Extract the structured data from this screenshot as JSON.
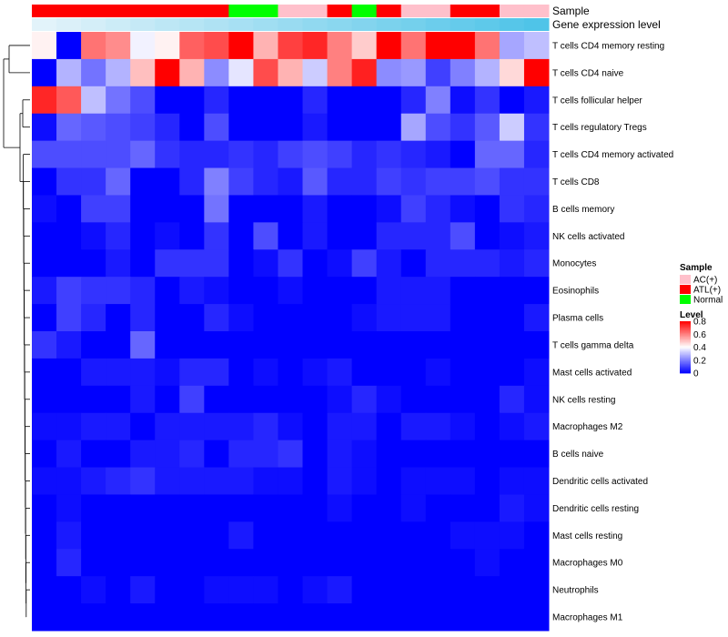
{
  "chart_data": {
    "type": "heatmap",
    "annotation_labels": [
      "Sample",
      "Gene expression level"
    ],
    "sample_track": [
      "ATL(+)",
      "ATL(+)",
      "ATL(+)",
      "ATL(+)",
      "ATL(+)",
      "ATL(+)",
      "ATL(+)",
      "ATL(+)",
      "Normal",
      "Normal",
      "AC(+)",
      "AC(+)",
      "ATL(+)",
      "Normal",
      "ATL(+)",
      "AC(+)",
      "AC(+)",
      "ATL(+)",
      "ATL(+)",
      "AC(+)",
      "AC(+)"
    ],
    "expression_track": [
      0.02,
      0.06,
      0.1,
      0.14,
      0.18,
      0.22,
      0.26,
      0.3,
      0.34,
      0.38,
      0.42,
      0.46,
      0.5,
      0.54,
      0.58,
      0.62,
      0.66,
      0.7,
      0.74,
      0.78,
      0.82
    ],
    "rows": [
      "T cells CD4 memory resting",
      "T cells CD4 naive",
      "T cells follicular helper",
      "T cells regulatory  Tregs",
      "T cells CD4 memory activated",
      "T cells CD8",
      "B cells memory",
      "NK cells activated",
      "Monocytes",
      "Eosinophils",
      "Plasma cells",
      "T cells gamma delta",
      "Mast cells activated",
      "NK cells resting",
      "Macrophages M2",
      "B cells naive",
      "Dendritic cells activated",
      "Dendritic cells resting",
      "Mast cells resting",
      "Macrophages M0",
      "Neutrophils",
      "Macrophages M1"
    ],
    "values": [
      [
        0.42,
        0.0,
        0.62,
        0.58,
        0.38,
        0.42,
        0.65,
        0.68,
        0.8,
        0.52,
        0.7,
        0.74,
        0.6,
        0.48,
        0.8,
        0.62,
        0.8,
        0.8,
        0.62,
        0.26,
        0.3
      ],
      [
        0.0,
        0.28,
        0.18,
        0.28,
        0.5,
        0.8,
        0.52,
        0.22,
        0.36,
        0.68,
        0.52,
        0.32,
        0.6,
        0.75,
        0.22,
        0.24,
        0.1,
        0.2,
        0.28,
        0.46,
        0.8
      ],
      [
        0.74,
        0.66,
        0.3,
        0.18,
        0.12,
        0.0,
        0.0,
        0.06,
        0.0,
        0.0,
        0.0,
        0.06,
        0.0,
        0.0,
        0.0,
        0.06,
        0.2,
        0.02,
        0.08,
        0.0,
        0.04
      ],
      [
        0.02,
        0.16,
        0.14,
        0.12,
        0.1,
        0.06,
        0.0,
        0.12,
        0.0,
        0.0,
        0.0,
        0.04,
        0.0,
        0.0,
        0.0,
        0.26,
        0.12,
        0.08,
        0.14,
        0.32,
        0.08
      ],
      [
        0.12,
        0.12,
        0.12,
        0.12,
        0.16,
        0.08,
        0.06,
        0.06,
        0.08,
        0.06,
        0.1,
        0.12,
        0.1,
        0.06,
        0.08,
        0.06,
        0.04,
        0.0,
        0.16,
        0.16,
        0.06
      ],
      [
        0.0,
        0.08,
        0.08,
        0.16,
        0.0,
        0.0,
        0.06,
        0.2,
        0.1,
        0.06,
        0.04,
        0.14,
        0.06,
        0.06,
        0.1,
        0.08,
        0.1,
        0.1,
        0.12,
        0.08,
        0.08
      ],
      [
        0.02,
        0.0,
        0.1,
        0.1,
        0.0,
        0.0,
        0.0,
        0.18,
        0.0,
        0.0,
        0.0,
        0.04,
        0.0,
        0.0,
        0.02,
        0.1,
        0.06,
        0.02,
        0.0,
        0.08,
        0.06
      ],
      [
        0.0,
        0.0,
        0.02,
        0.06,
        0.0,
        0.02,
        0.0,
        0.08,
        0.0,
        0.12,
        0.0,
        0.04,
        0.0,
        0.0,
        0.06,
        0.06,
        0.06,
        0.12,
        0.0,
        0.02,
        0.04
      ],
      [
        0.0,
        0.0,
        0.0,
        0.04,
        0.0,
        0.08,
        0.08,
        0.08,
        0.0,
        0.02,
        0.08,
        0.0,
        0.02,
        0.1,
        0.04,
        0.0,
        0.06,
        0.06,
        0.06,
        0.04,
        0.06
      ],
      [
        0.04,
        0.1,
        0.08,
        0.08,
        0.06,
        0.0,
        0.04,
        0.02,
        0.0,
        0.0,
        0.02,
        0.0,
        0.0,
        0.0,
        0.04,
        0.04,
        0.04,
        0.0,
        0.0,
        0.0,
        0.0
      ],
      [
        0.0,
        0.1,
        0.06,
        0.0,
        0.06,
        0.0,
        0.0,
        0.06,
        0.02,
        0.0,
        0.0,
        0.0,
        0.0,
        0.02,
        0.04,
        0.04,
        0.04,
        0.0,
        0.0,
        0.0,
        0.04
      ],
      [
        0.08,
        0.04,
        0.0,
        0.0,
        0.16,
        0.0,
        0.0,
        0.0,
        0.0,
        0.0,
        0.0,
        0.0,
        0.0,
        0.0,
        0.0,
        0.0,
        0.0,
        0.0,
        0.0,
        0.0,
        0.0
      ],
      [
        0.0,
        0.0,
        0.04,
        0.04,
        0.04,
        0.02,
        0.06,
        0.06,
        0.0,
        0.02,
        0.0,
        0.02,
        0.04,
        0.0,
        0.0,
        0.0,
        0.02,
        0.0,
        0.0,
        0.0,
        0.02
      ],
      [
        0.0,
        0.0,
        0.0,
        0.0,
        0.04,
        0.0,
        0.1,
        0.0,
        0.0,
        0.0,
        0.0,
        0.0,
        0.02,
        0.06,
        0.02,
        0.0,
        0.0,
        0.0,
        0.0,
        0.06,
        0.02
      ],
      [
        0.02,
        0.02,
        0.04,
        0.04,
        0.0,
        0.04,
        0.04,
        0.04,
        0.04,
        0.06,
        0.02,
        0.0,
        0.04,
        0.04,
        0.0,
        0.04,
        0.04,
        0.02,
        0.0,
        0.02,
        0.04
      ],
      [
        0.0,
        0.04,
        0.0,
        0.0,
        0.04,
        0.04,
        0.06,
        0.0,
        0.06,
        0.06,
        0.08,
        0.0,
        0.04,
        0.02,
        0.0,
        0.0,
        0.0,
        0.0,
        0.0,
        0.0,
        0.0
      ],
      [
        0.02,
        0.02,
        0.04,
        0.06,
        0.08,
        0.04,
        0.04,
        0.04,
        0.04,
        0.02,
        0.02,
        0.0,
        0.04,
        0.02,
        0.0,
        0.02,
        0.02,
        0.02,
        0.0,
        0.02,
        0.02
      ],
      [
        0.0,
        0.02,
        0.0,
        0.0,
        0.0,
        0.0,
        0.0,
        0.0,
        0.0,
        0.0,
        0.0,
        0.0,
        0.02,
        0.0,
        0.0,
        0.02,
        0.0,
        0.0,
        0.0,
        0.04,
        0.02
      ],
      [
        0.0,
        0.04,
        0.0,
        0.0,
        0.0,
        0.0,
        0.0,
        0.0,
        0.04,
        0.0,
        0.0,
        0.0,
        0.0,
        0.0,
        0.0,
        0.0,
        0.0,
        0.02,
        0.02,
        0.02,
        0.0
      ],
      [
        0.0,
        0.06,
        0.0,
        0.0,
        0.0,
        0.0,
        0.0,
        0.0,
        0.0,
        0.0,
        0.0,
        0.0,
        0.0,
        0.0,
        0.0,
        0.0,
        0.0,
        0.0,
        0.02,
        0.0,
        0.0
      ],
      [
        0.0,
        0.0,
        0.02,
        0.0,
        0.04,
        0.0,
        0.0,
        0.02,
        0.02,
        0.02,
        0.0,
        0.02,
        0.04,
        0.0,
        0.0,
        0.0,
        0.0,
        0.0,
        0.0,
        0.0,
        0.0
      ],
      [
        0.0,
        0.0,
        0.0,
        0.0,
        0.0,
        0.0,
        0.0,
        0.0,
        0.0,
        0.0,
        0.0,
        0.0,
        0.0,
        0.0,
        0.0,
        0.0,
        0.0,
        0.0,
        0.0,
        0.0,
        0.0
      ]
    ],
    "color_scale": {
      "low": "#0000FF",
      "mid": "#FFFFFF",
      "high": "#FF0000",
      "domain": [
        0,
        0.8
      ],
      "mid_value": 0.4
    },
    "expression_colors": {
      "low": "#E6F4FA",
      "high": "#4FC4E8"
    },
    "legend": {
      "sample_title": "Sample",
      "sample_entries": [
        {
          "label": "AC(+)",
          "color": "#FFC0CB"
        },
        {
          "label": "ATL(+)",
          "color": "#FF0000"
        },
        {
          "label": "Normal",
          "color": "#00FF00"
        }
      ],
      "level_title": "Level",
      "level_ticks": [
        0.8,
        0.6,
        0.4,
        0.2,
        0
      ]
    },
    "dendrogram_leaf_order": "rows (top to bottom)"
  }
}
